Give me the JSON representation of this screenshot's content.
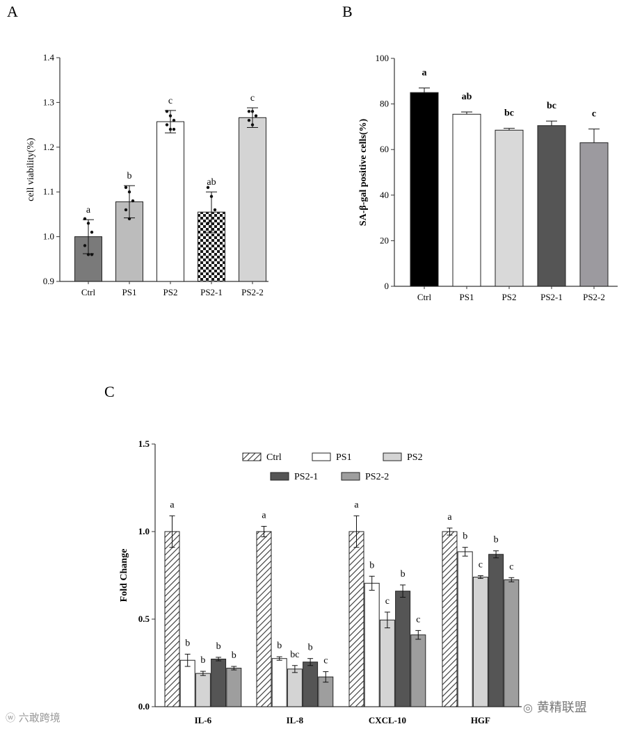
{
  "chart_data": [
    {
      "panel": "A",
      "type": "bar",
      "ylabel": "cell viability(%)",
      "ylim": [
        0.9,
        1.4
      ],
      "yticks": [
        "0.9",
        "1.0",
        "1.1",
        "1.2",
        "1.3",
        "1.4"
      ],
      "categories": [
        "Ctrl",
        "PS1",
        "PS2",
        "PS2-1",
        "PS2-2"
      ],
      "values": [
        1.0,
        1.078,
        1.257,
        1.055,
        1.266
      ],
      "errors": [
        0.038,
        0.036,
        0.025,
        0.045,
        0.022
      ],
      "letters": [
        "a",
        "b",
        "c",
        "ab",
        "c"
      ],
      "fills": [
        "#7a7a7a",
        "#bcbcbc",
        "#ffffff",
        "checker",
        "#d4d4d4"
      ],
      "points": [
        [
          1.04,
          1.03,
          1.01,
          0.98,
          0.96,
          0.96
        ],
        [
          1.11,
          1.1,
          1.08,
          1.06,
          1.04
        ],
        [
          1.28,
          1.27,
          1.26,
          1.25,
          1.24,
          1.24
        ],
        [
          1.11,
          1.09,
          1.06,
          1.03
        ],
        [
          1.28,
          1.28,
          1.27,
          1.26,
          1.25
        ]
      ]
    },
    {
      "panel": "B",
      "type": "bar",
      "ylabel": "SA-β-gal positive cells(%)",
      "ylim": [
        0,
        100
      ],
      "yticks": [
        "0",
        "20",
        "40",
        "60",
        "80",
        "100"
      ],
      "categories": [
        "Ctrl",
        "PS1",
        "PS2",
        "PS2-1",
        "PS2-2"
      ],
      "values": [
        85.0,
        75.5,
        68.5,
        70.5,
        63.0
      ],
      "errors": [
        2.0,
        1.0,
        0.8,
        2.0,
        6.0
      ],
      "letters": [
        "a",
        "ab",
        "bc",
        "bc",
        "c"
      ],
      "fills": [
        "#000000",
        "#ffffff",
        "#d9d9d9",
        "#555555",
        "#9c9a9f"
      ]
    },
    {
      "panel": "C",
      "type": "bar",
      "ylabel": "Fold  Change",
      "ylim": [
        0,
        1.5
      ],
      "yticks": [
        "0.0",
        "0.5",
        "1.0",
        "1.5"
      ],
      "categories": [
        "IL-6",
        "IL-8",
        "CXCL-10",
        "HGF"
      ],
      "series": [
        {
          "name": "Ctrl",
          "fill": "hatch",
          "values": [
            1.0,
            1.0,
            1.0,
            1.0
          ],
          "errors": [
            0.09,
            0.03,
            0.09,
            0.02
          ],
          "letters": [
            "a",
            "a",
            "a",
            "a"
          ]
        },
        {
          "name": "PS1",
          "fill": "#ffffff",
          "values": [
            0.265,
            0.275,
            0.705,
            0.885
          ],
          "errors": [
            0.035,
            0.01,
            0.04,
            0.025
          ],
          "letters": [
            "b",
            "b",
            "b",
            "b"
          ]
        },
        {
          "name": "PS2",
          "fill": "#d4d4d4",
          "values": [
            0.19,
            0.215,
            0.495,
            0.74
          ],
          "errors": [
            0.012,
            0.02,
            0.045,
            0.008
          ],
          "letters": [
            "b",
            "bc",
            "c",
            "c"
          ]
        },
        {
          "name": "PS2-1",
          "fill": "#555555",
          "values": [
            0.272,
            0.255,
            0.66,
            0.87
          ],
          "errors": [
            0.01,
            0.02,
            0.035,
            0.02
          ],
          "letters": [
            "b",
            "b",
            "b",
            "b"
          ]
        },
        {
          "name": "PS2-2",
          "fill": "#9e9e9e",
          "values": [
            0.22,
            0.17,
            0.41,
            0.725
          ],
          "errors": [
            0.01,
            0.03,
            0.025,
            0.012
          ],
          "letters": [
            "b",
            "c",
            "c",
            "c"
          ]
        }
      ]
    }
  ],
  "panel_labels": {
    "a": "A",
    "b": "B",
    "c": "C"
  },
  "watermarks": {
    "left": "六敢跨境",
    "right": "黄精联盟"
  },
  "axis_color": "#333333"
}
